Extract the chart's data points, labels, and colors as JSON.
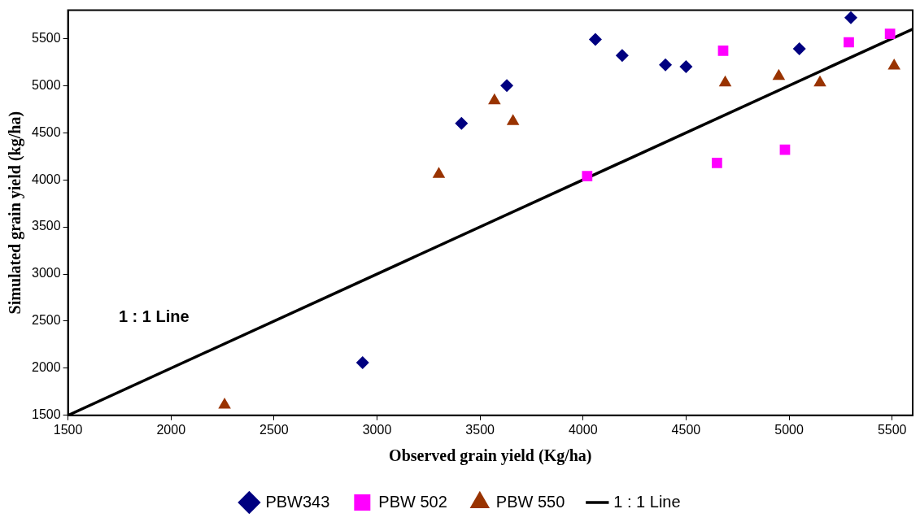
{
  "chart_data": {
    "type": "scatter",
    "xlabel": "Observed grain yield (Kg/ha)",
    "ylabel": "Simulated grain yield (kg/ha)",
    "xlim": [
      1500,
      5600
    ],
    "xticks": [
      1500,
      2000,
      2500,
      3000,
      3500,
      4000,
      4500,
      5000,
      5500
    ],
    "ylim": [
      1500,
      5800
    ],
    "yticks": [
      1500,
      2000,
      2500,
      3000,
      3500,
      4000,
      4500,
      5000,
      5500
    ],
    "grid": false,
    "legend": "bottom",
    "annotations": [
      "1 : 1 Line"
    ],
    "series": [
      {
        "name": "PBW343",
        "color": "#000080",
        "marker": "diamond",
        "x": [
          2930,
          3410,
          3630,
          4060,
          4190,
          4400,
          4500,
          5050,
          5300
        ],
        "values": [
          2060,
          4600,
          5000,
          5490,
          5320,
          5220,
          5200,
          5390,
          5720
        ]
      },
      {
        "name": "PBW 502",
        "color": "#ff00ff",
        "marker": "square",
        "x": [
          4020,
          4680,
          4650,
          4980,
          5290,
          5490
        ],
        "values": [
          4040,
          5370,
          4180,
          4320,
          5460,
          5550
        ]
      },
      {
        "name": "PBW 550",
        "color": "#993300",
        "marker": "triangle",
        "x": [
          2260,
          3300,
          3570,
          3660,
          4690,
          4950,
          5150,
          5510
        ],
        "values": [
          1610,
          4060,
          4840,
          4620,
          5030,
          5100,
          5030,
          5210
        ]
      },
      {
        "name": "1 : 1 Line",
        "type": "line",
        "color": "#000000",
        "marker": "none",
        "line_style": "solid",
        "x": [
          1500,
          5600
        ],
        "values": [
          1500,
          5600
        ]
      }
    ]
  }
}
